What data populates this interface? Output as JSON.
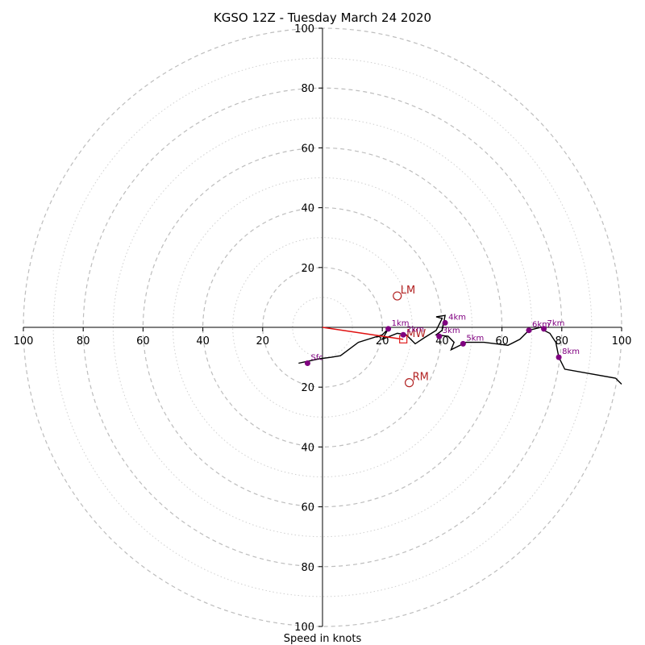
{
  "chart_data": {
    "type": "hodograph",
    "title": "KGSO 12Z - Tuesday March 24 2020",
    "xlabel": "Speed in knots",
    "xlim": [
      -100,
      100
    ],
    "ylim": [
      -100,
      100
    ],
    "ring_major": [
      20,
      40,
      60,
      80,
      100
    ],
    "ring_minor": [
      10,
      30,
      50,
      70,
      90
    ],
    "x_ticks": [
      -100,
      -80,
      -60,
      -40,
      -20,
      20,
      40,
      60,
      80,
      100
    ],
    "x_tick_labels": [
      "100",
      "80",
      "60",
      "40",
      "20",
      "20",
      "40",
      "60",
      "80",
      "100"
    ],
    "y_ticks": [
      100,
      80,
      60,
      40,
      20,
      -20,
      -40,
      -60,
      -80,
      -100
    ],
    "y_tick_labels": [
      "100",
      "80",
      "60",
      "40",
      "20",
      "20",
      "40",
      "60",
      "80",
      "100"
    ],
    "hodograph": [
      [
        -8,
        -12
      ],
      [
        -1,
        -10.5
      ],
      [
        3,
        -10
      ],
      [
        6,
        -9.5
      ],
      [
        12,
        -5
      ],
      [
        20,
        -2.5
      ],
      [
        22,
        -0.5
      ],
      [
        20,
        -4
      ],
      [
        25,
        -2
      ],
      [
        28,
        -2.5
      ],
      [
        31,
        -5.5
      ],
      [
        34,
        -3.5
      ],
      [
        38,
        -1
      ],
      [
        40,
        3
      ],
      [
        38,
        3.5
      ],
      [
        41,
        4
      ],
      [
        40,
        -1
      ],
      [
        38,
        -2.5
      ],
      [
        42,
        -3
      ],
      [
        44,
        -5
      ],
      [
        43,
        -7.5
      ],
      [
        46,
        -6
      ],
      [
        48,
        -5
      ],
      [
        54,
        -5
      ],
      [
        58,
        -5.5
      ],
      [
        62,
        -6
      ],
      [
        66,
        -4
      ],
      [
        69,
        -1
      ],
      [
        73,
        0
      ],
      [
        74,
        0
      ],
      [
        74,
        -1
      ],
      [
        76,
        -2
      ],
      [
        78,
        -5
      ],
      [
        79,
        -10
      ],
      [
        81,
        -14
      ],
      [
        98,
        -17
      ],
      [
        100,
        -19
      ]
    ],
    "height_markers": [
      {
        "label": "Sfc",
        "u": -5,
        "v": -12
      },
      {
        "label": "1km",
        "u": 22,
        "v": -0.5
      },
      {
        "label": "2km",
        "u": 27,
        "v": -2.5
      },
      {
        "label": "3km",
        "u": 39,
        "v": -3
      },
      {
        "label": "4km",
        "u": 41,
        "v": 1.5
      },
      {
        "label": "5km",
        "u": 47,
        "v": -5.5
      },
      {
        "label": "6km",
        "u": 69,
        "v": -1
      },
      {
        "label": "7km",
        "u": 74,
        "v": -0.5
      },
      {
        "label": "8km",
        "u": 79,
        "v": -10
      }
    ],
    "storm_markers": [
      {
        "label": "LM",
        "u": 25,
        "v": 10.5,
        "shape": "circle"
      },
      {
        "label": "RM",
        "u": 29,
        "v": -18.5,
        "shape": "circle"
      },
      {
        "label": "MW",
        "u": 27,
        "v": -4,
        "shape": "square"
      }
    ],
    "shear_vector": {
      "u": 27,
      "v": -4
    },
    "colors": {
      "hodograph": "#000000",
      "height_markers": "#800080",
      "storm_markers": "#b22222",
      "shear_vector": "#e01010",
      "rings": "#bdbdbd"
    }
  }
}
